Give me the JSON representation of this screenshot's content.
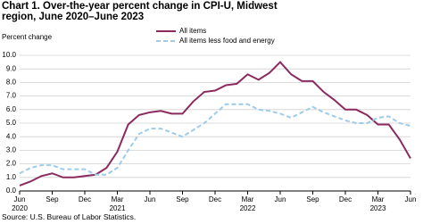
{
  "chart_data": {
    "type": "line",
    "title": "Chart 1. Over-the-year percent change in CPI-U, Midwest region, June 2020–June 2023",
    "y_label": "Percent change",
    "source": "Source: U.S. Bureau of Labor Statistics.",
    "categories": [
      "Jun 2020",
      null,
      null,
      "Sep",
      null,
      null,
      "Dec",
      null,
      null,
      "Mar 2021",
      null,
      null,
      "Jun",
      null,
      null,
      "Sep",
      null,
      null,
      "Dec",
      null,
      null,
      "Mar 2022",
      null,
      null,
      "Jun",
      null,
      null,
      "Sep",
      null,
      null,
      "Dec",
      null,
      null,
      "Mar 2023",
      null,
      null,
      "Jun"
    ],
    "series": [
      {
        "name": "All items",
        "color": "#8b2a5e",
        "dash": false,
        "values": [
          0.4,
          0.7,
          1.1,
          1.3,
          1.0,
          1.0,
          1.1,
          1.2,
          1.7,
          2.9,
          4.9,
          5.6,
          5.8,
          5.9,
          5.7,
          5.7,
          6.6,
          7.3,
          7.4,
          7.8,
          7.9,
          8.6,
          8.2,
          8.7,
          9.5,
          8.6,
          8.1,
          8.1,
          7.3,
          6.7,
          6.0,
          6.0,
          5.6,
          4.9,
          4.9,
          3.8,
          2.4
        ]
      },
      {
        "name": "All items less food and energy",
        "color": "#9dcbec",
        "dash": true,
        "values": [
          1.3,
          1.7,
          1.9,
          1.9,
          1.6,
          1.6,
          1.6,
          1.2,
          1.2,
          1.7,
          3.0,
          4.2,
          4.6,
          4.6,
          4.3,
          4.0,
          4.5,
          5.0,
          5.7,
          6.4,
          6.4,
          6.4,
          6.0,
          5.9,
          5.7,
          5.4,
          5.8,
          6.2,
          5.8,
          5.5,
          5.2,
          5.0,
          5.0,
          5.4,
          5.5,
          5.0,
          4.8
        ]
      }
    ],
    "ylim": [
      0,
      10
    ],
    "yticks": [
      {
        "value": 0,
        "label": "0.0"
      },
      {
        "value": 1,
        "label": "1.0"
      },
      {
        "value": 2,
        "label": "2.0"
      },
      {
        "value": 3,
        "label": "3.0"
      },
      {
        "value": 4,
        "label": "4.0"
      },
      {
        "value": 5,
        "label": "5.0"
      },
      {
        "value": 6,
        "label": "6.0"
      },
      {
        "value": 7,
        "label": "7.0"
      },
      {
        "value": 8,
        "label": "8.0"
      },
      {
        "value": 9,
        "label": "9.0"
      },
      {
        "value": 10,
        "label": "10.0"
      }
    ],
    "grid": true
  }
}
